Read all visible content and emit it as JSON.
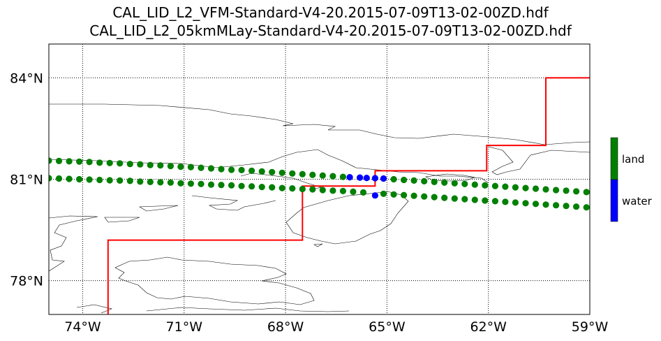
{
  "titles": [
    "CAL_LID_L2_VFM-Standard-V4-20.2015-07-09T13-02-00ZD.hdf",
    "CAL_LID_L2_05kmMLay-Standard-V4-20.2015-07-09T13-02-00ZD.hdf"
  ],
  "map": {
    "lon_range": [
      -75,
      -59
    ],
    "lat_range": [
      77,
      85
    ],
    "lon_ticks": [
      -74,
      -71,
      -68,
      -65,
      -62,
      -59
    ],
    "lat_ticks": [
      78,
      81,
      84
    ],
    "lon_tick_labels": [
      "74°W",
      "71°W",
      "68°W",
      "65°W",
      "62°W",
      "59°W"
    ],
    "lat_tick_labels": [
      "78°N",
      "81°N",
      "84°N"
    ],
    "grid": "dotted"
  },
  "colors": {
    "land": "#008000",
    "water": "#0000ff",
    "boundary": "#ff0000",
    "coast": "#000000"
  },
  "legend": {
    "land_label": "land",
    "water_label": "water"
  },
  "chart_data": {
    "type": "scatter",
    "xlabel": "",
    "ylabel": "",
    "xlim": [
      -75,
      -59
    ],
    "ylim": [
      77,
      85
    ],
    "series": [
      {
        "track": "upper",
        "points": [
          [
            -75.0,
            81.55,
            "land"
          ],
          [
            -74.7,
            81.54,
            "land"
          ],
          [
            -74.4,
            81.53,
            "land"
          ],
          [
            -74.1,
            81.52,
            "land"
          ],
          [
            -73.8,
            81.51,
            "land"
          ],
          [
            -73.5,
            81.49,
            "land"
          ],
          [
            -73.2,
            81.48,
            "land"
          ],
          [
            -72.9,
            81.47,
            "land"
          ],
          [
            -72.6,
            81.45,
            "land"
          ],
          [
            -72.3,
            81.44,
            "land"
          ],
          [
            -72.0,
            81.42,
            "land"
          ],
          [
            -71.7,
            81.41,
            "land"
          ],
          [
            -71.4,
            81.39,
            "land"
          ],
          [
            -71.1,
            81.37,
            "land"
          ],
          [
            -70.8,
            81.36,
            "land"
          ],
          [
            -70.5,
            81.34,
            "land"
          ],
          [
            -70.2,
            81.32,
            "land"
          ],
          [
            -69.9,
            81.3,
            "land"
          ],
          [
            -69.6,
            81.28,
            "land"
          ],
          [
            -69.3,
            81.27,
            "land"
          ],
          [
            -69.0,
            81.25,
            "land"
          ],
          [
            -68.7,
            81.23,
            "land"
          ],
          [
            -68.4,
            81.21,
            "land"
          ],
          [
            -68.1,
            81.19,
            "land"
          ],
          [
            -67.8,
            81.17,
            "land"
          ],
          [
            -67.5,
            81.15,
            "land"
          ],
          [
            -67.2,
            81.13,
            "land"
          ],
          [
            -66.9,
            81.11,
            "land"
          ],
          [
            -66.6,
            81.09,
            "land"
          ],
          [
            -66.3,
            81.07,
            "land"
          ],
          [
            -66.1,
            81.06,
            "water"
          ],
          [
            -65.8,
            81.05,
            "water"
          ],
          [
            -65.6,
            81.04,
            "water"
          ],
          [
            -65.35,
            81.03,
            "water"
          ],
          [
            -65.1,
            81.02,
            "water"
          ],
          [
            -64.8,
            81.0,
            "land"
          ],
          [
            -64.5,
            80.98,
            "land"
          ],
          [
            -64.2,
            80.96,
            "land"
          ],
          [
            -63.9,
            80.94,
            "land"
          ],
          [
            -63.6,
            80.92,
            "land"
          ],
          [
            -63.3,
            80.9,
            "land"
          ],
          [
            -63.0,
            80.88,
            "land"
          ],
          [
            -62.7,
            80.86,
            "land"
          ],
          [
            -62.4,
            80.84,
            "land"
          ],
          [
            -62.1,
            80.82,
            "land"
          ],
          [
            -61.8,
            80.8,
            "land"
          ],
          [
            -61.5,
            80.78,
            "land"
          ],
          [
            -61.2,
            80.76,
            "land"
          ],
          [
            -60.9,
            80.74,
            "land"
          ],
          [
            -60.6,
            80.72,
            "land"
          ],
          [
            -60.3,
            80.7,
            "land"
          ],
          [
            -60.0,
            80.68,
            "land"
          ],
          [
            -59.7,
            80.66,
            "land"
          ],
          [
            -59.4,
            80.64,
            "land"
          ],
          [
            -59.1,
            80.62,
            "land"
          ]
        ]
      },
      {
        "track": "lower",
        "points": [
          [
            -75.0,
            81.03,
            "land"
          ],
          [
            -74.7,
            81.02,
            "land"
          ],
          [
            -74.4,
            81.01,
            "land"
          ],
          [
            -74.1,
            81.0,
            "land"
          ],
          [
            -73.8,
            80.99,
            "land"
          ],
          [
            -73.5,
            80.98,
            "land"
          ],
          [
            -73.2,
            80.97,
            "land"
          ],
          [
            -72.9,
            80.96,
            "land"
          ],
          [
            -72.6,
            80.95,
            "land"
          ],
          [
            -72.3,
            80.93,
            "land"
          ],
          [
            -72.0,
            80.92,
            "land"
          ],
          [
            -71.7,
            80.91,
            "land"
          ],
          [
            -71.4,
            80.9,
            "land"
          ],
          [
            -71.1,
            80.88,
            "land"
          ],
          [
            -70.8,
            80.87,
            "land"
          ],
          [
            -70.5,
            80.86,
            "land"
          ],
          [
            -70.2,
            80.84,
            "land"
          ],
          [
            -69.9,
            80.83,
            "land"
          ],
          [
            -69.6,
            80.82,
            "land"
          ],
          [
            -69.3,
            80.8,
            "land"
          ],
          [
            -69.0,
            80.79,
            "land"
          ],
          [
            -68.7,
            80.77,
            "land"
          ],
          [
            -68.4,
            80.76,
            "land"
          ],
          [
            -68.1,
            80.74,
            "land"
          ],
          [
            -67.8,
            80.73,
            "land"
          ],
          [
            -67.5,
            80.71,
            "land"
          ],
          [
            -67.2,
            80.7,
            "land"
          ],
          [
            -66.9,
            80.68,
            "land"
          ],
          [
            -66.6,
            80.66,
            "land"
          ],
          [
            -66.3,
            80.65,
            "land"
          ],
          [
            -66.0,
            80.63,
            "land"
          ],
          [
            -65.7,
            80.61,
            "land"
          ],
          [
            -65.35,
            80.52,
            "water"
          ],
          [
            -65.1,
            80.57,
            "land"
          ],
          [
            -64.8,
            80.55,
            "land"
          ],
          [
            -64.5,
            80.53,
            "land"
          ],
          [
            -64.2,
            80.51,
            "land"
          ],
          [
            -63.9,
            80.49,
            "land"
          ],
          [
            -63.6,
            80.47,
            "land"
          ],
          [
            -63.3,
            80.45,
            "land"
          ],
          [
            -63.0,
            80.43,
            "land"
          ],
          [
            -62.7,
            80.41,
            "land"
          ],
          [
            -62.4,
            80.39,
            "land"
          ],
          [
            -62.1,
            80.37,
            "land"
          ],
          [
            -61.8,
            80.35,
            "land"
          ],
          [
            -61.5,
            80.33,
            "land"
          ],
          [
            -61.2,
            80.31,
            "land"
          ],
          [
            -60.9,
            80.29,
            "land"
          ],
          [
            -60.6,
            80.27,
            "land"
          ],
          [
            -60.3,
            80.25,
            "land"
          ],
          [
            -60.0,
            80.23,
            "land"
          ],
          [
            -59.7,
            80.21,
            "land"
          ],
          [
            -59.4,
            80.19,
            "land"
          ],
          [
            -59.1,
            80.17,
            "land"
          ]
        ]
      }
    ],
    "boundary_line": [
      [
        -73.25,
        76.9
      ],
      [
        -73.25,
        79.2
      ],
      [
        -67.5,
        79.2
      ],
      [
        -67.5,
        80.8
      ],
      [
        -65.35,
        80.8
      ],
      [
        -65.35,
        81.25
      ],
      [
        -62.05,
        81.25
      ],
      [
        -62.05,
        82.0
      ],
      [
        -60.3,
        82.0
      ],
      [
        -60.3,
        84.0
      ],
      [
        -59,
        84.0
      ]
    ]
  }
}
